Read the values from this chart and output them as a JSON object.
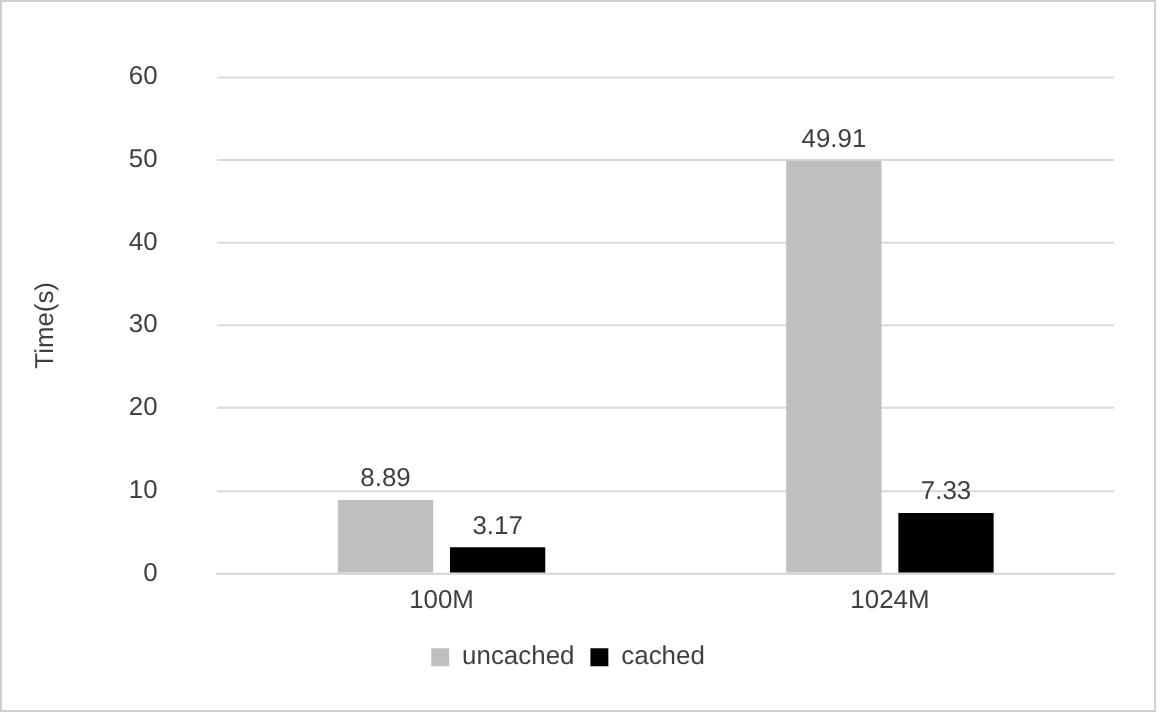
{
  "chart_data": {
    "type": "bar",
    "ylabel": "Time(s)",
    "categories": [
      "100M",
      "1024M"
    ],
    "series": [
      {
        "name": "uncached",
        "color": "#bfbfbf",
        "values": [
          8.89,
          49.91
        ]
      },
      {
        "name": "cached",
        "color": "#000000",
        "values": [
          3.17,
          7.33
        ]
      }
    ],
    "ylim": [
      0,
      60
    ],
    "yticks": [
      0,
      10,
      20,
      30,
      40,
      50,
      60
    ],
    "grid": "y",
    "legend": "bottom",
    "data_labels": true
  }
}
